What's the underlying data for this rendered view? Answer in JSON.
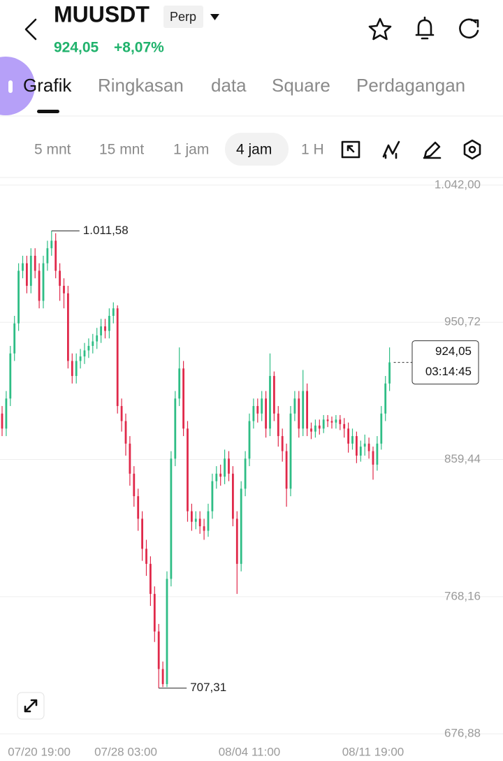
{
  "header": {
    "symbol": "MUUSDT",
    "badge": "Perp",
    "price": "924,05",
    "change": "+8,07%"
  },
  "tabs": [
    "Grafik",
    "Ringkasan",
    "data",
    "Square",
    "Perdagangan"
  ],
  "intervals": [
    "5 mnt",
    "15 mnt",
    "1 jam",
    "4 jam",
    "1 H"
  ],
  "chart_data": {
    "type": "candlestick",
    "up_color": "#2ebd85",
    "down_color": "#e0294a",
    "categories": [
      null,
      null,
      null,
      null,
      null,
      null,
      null,
      null,
      null,
      "07/20 19:00",
      null,
      null,
      null,
      null,
      null,
      null,
      null,
      null,
      null,
      null,
      null,
      null,
      null,
      null,
      null,
      null,
      null,
      null,
      null,
      null,
      "07/28 03:00",
      null,
      null,
      null,
      null,
      null,
      null,
      null,
      null,
      null,
      null,
      null,
      null,
      null,
      null,
      null,
      null,
      null,
      null,
      null,
      null,
      null,
      null,
      null,
      null,
      null,
      null,
      null,
      null,
      null,
      "08/04 11:00",
      null,
      null,
      null,
      null,
      null,
      null,
      null,
      null,
      null,
      null,
      null,
      null,
      null,
      null,
      null,
      null,
      null,
      null,
      null,
      null,
      null,
      null,
      null,
      null,
      null,
      null,
      null,
      null,
      null,
      "08/11 19:00",
      null,
      null,
      null,
      null
    ],
    "open": [
      890,
      880,
      900,
      930,
      950,
      985,
      990,
      975,
      995,
      985,
      965,
      990,
      1000,
      1005,
      985,
      975,
      970,
      925,
      915,
      925,
      928,
      932,
      935,
      938,
      942,
      948,
      945,
      955,
      960,
      895,
      885,
      870,
      850,
      835,
      820,
      800,
      790,
      770,
      745,
      720,
      710,
      780,
      860,
      900,
      920,
      880,
      825,
      818,
      820,
      815,
      812,
      825,
      845,
      850,
      848,
      860,
      850,
      820,
      790,
      840,
      860,
      885,
      895,
      890,
      900,
      880,
      915,
      890,
      875,
      865,
      840,
      890,
      900,
      880,
      905,
      880,
      878,
      882,
      880,
      886,
      885,
      884,
      886,
      883,
      880,
      870,
      875,
      862,
      868,
      870,
      865,
      856,
      870,
      890,
      910
    ],
    "high": [
      895,
      905,
      935,
      955,
      990,
      995,
      995,
      1000,
      1000,
      990,
      995,
      1005,
      1011.58,
      1010,
      990,
      980,
      975,
      930,
      930,
      933,
      937,
      940,
      943,
      947,
      953,
      953,
      960,
      964,
      962,
      900,
      890,
      875,
      855,
      840,
      825,
      806,
      795,
      775,
      750,
      725,
      785,
      865,
      905,
      934,
      925,
      885,
      830,
      825,
      825,
      820,
      830,
      850,
      855,
      856,
      866,
      865,
      855,
      825,
      845,
      865,
      890,
      900,
      900,
      905,
      905,
      930,
      918,
      895,
      880,
      870,
      895,
      905,
      905,
      919,
      910,
      884,
      886,
      886,
      889,
      889,
      888,
      889,
      889,
      887,
      884,
      880,
      878,
      872,
      876,
      874,
      868,
      875,
      895,
      915,
      934
    ],
    "low": [
      875,
      875,
      895,
      925,
      945,
      980,
      970,
      970,
      980,
      960,
      960,
      985,
      995,
      980,
      965,
      960,
      920,
      910,
      910,
      920,
      923,
      927,
      930,
      933,
      937,
      940,
      940,
      950,
      890,
      878,
      862,
      842,
      828,
      812,
      792,
      782,
      762,
      738,
      707.31,
      708,
      708,
      775,
      855,
      895,
      875,
      818,
      812,
      813,
      810,
      806,
      808,
      820,
      840,
      842,
      843,
      845,
      815,
      770,
      785,
      835,
      855,
      880,
      884,
      885,
      874,
      875,
      885,
      868,
      858,
      828,
      835,
      885,
      874,
      875,
      875,
      873,
      874,
      876,
      877,
      881,
      880,
      880,
      879,
      874,
      864,
      866,
      857,
      858,
      862,
      860,
      846,
      852,
      866,
      885,
      905
    ],
    "close": [
      880,
      900,
      930,
      950,
      985,
      990,
      975,
      995,
      985,
      965,
      990,
      1000,
      1005,
      985,
      975,
      970,
      925,
      915,
      925,
      928,
      932,
      935,
      938,
      942,
      948,
      945,
      955,
      960,
      895,
      885,
      870,
      850,
      835,
      820,
      800,
      790,
      770,
      745,
      720,
      710,
      780,
      860,
      900,
      920,
      880,
      825,
      818,
      820,
      815,
      812,
      825,
      845,
      850,
      848,
      860,
      850,
      820,
      790,
      840,
      860,
      885,
      895,
      890,
      900,
      880,
      915,
      890,
      875,
      865,
      840,
      890,
      900,
      880,
      905,
      880,
      878,
      882,
      880,
      886,
      885,
      884,
      886,
      883,
      880,
      870,
      875,
      862,
      868,
      870,
      865,
      856,
      870,
      890,
      910,
      924.05
    ],
    "ylim": [
      672.3,
      1046.6
    ],
    "yticks": [
      {
        "value": 1042,
        "label": "1.042,00"
      },
      {
        "value": 950.72,
        "label": "950,72"
      },
      {
        "value": 859.44,
        "label": "859,44"
      },
      {
        "value": 768.16,
        "label": "768,16"
      },
      {
        "value": 676.88,
        "label": "676,88"
      }
    ],
    "grid": true,
    "high_label": "1.011,58",
    "low_label": "707,31",
    "last_label": "924,05",
    "countdown": "03:14:45"
  }
}
